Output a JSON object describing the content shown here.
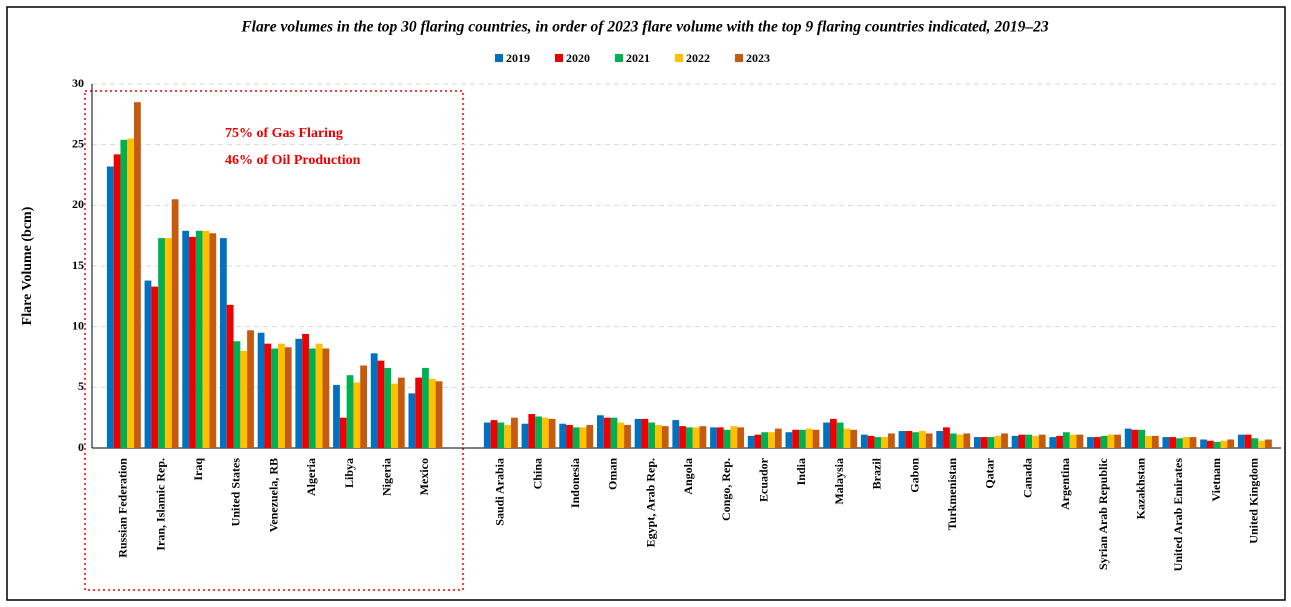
{
  "chart_data": {
    "type": "bar",
    "title": "Flare volumes in the top 30 flaring countries, in order of 2023 flare volume with the top 9 flaring countries indicated, 2019–23",
    "y_label": "Flare Volume (bcm)",
    "annotations": [
      "75% of Gas Flaring",
      "46% of Oil Production"
    ],
    "categories": [
      "Russian Federation",
      "Iran, Islamic Rep.",
      "Iraq",
      "United States",
      "Venezuela, RB",
      "Algeria",
      "Libya",
      "Nigeria",
      "Mexico",
      null,
      "Saudi Arabia",
      "China",
      "Indonesia",
      "Oman",
      "Egypt, Arab Rep.",
      "Angola",
      "Congo, Rep.",
      "Ecuador",
      "India",
      "Malaysia",
      "Brazil",
      "Gabon",
      "Turkmenistan",
      "Qatar",
      "Canada",
      "Argentina",
      "Syrian Arab Republic",
      "Kazakhstan",
      "United Arab Emirates",
      "Vietnam",
      "United Kingdom"
    ],
    "series": [
      {
        "name": "2019",
        "color": "#0070c0",
        "values": [
          23.2,
          13.8,
          17.9,
          17.3,
          9.5,
          9.0,
          5.2,
          7.8,
          4.5,
          null,
          2.1,
          2.0,
          2.0,
          2.7,
          2.4,
          2.3,
          1.7,
          1.0,
          1.3,
          2.1,
          1.1,
          1.4,
          1.4,
          0.9,
          1.0,
          0.9,
          0.9,
          1.6,
          0.9,
          0.7,
          1.1
        ]
      },
      {
        "name": "2020",
        "color": "#ee0000",
        "values": [
          24.2,
          13.3,
          17.4,
          11.8,
          8.6,
          9.4,
          2.5,
          7.2,
          5.8,
          null,
          2.3,
          2.8,
          1.9,
          2.5,
          2.4,
          1.8,
          1.7,
          1.1,
          1.5,
          2.4,
          1.0,
          1.4,
          1.7,
          0.9,
          1.1,
          1.0,
          0.9,
          1.5,
          0.9,
          0.6,
          1.1
        ]
      },
      {
        "name": "2021",
        "color": "#00b050",
        "values": [
          25.4,
          17.3,
          17.9,
          8.8,
          8.2,
          8.2,
          6.0,
          6.6,
          6.6,
          null,
          2.1,
          2.6,
          1.7,
          2.5,
          2.1,
          1.7,
          1.5,
          1.3,
          1.5,
          2.1,
          0.9,
          1.3,
          1.2,
          0.9,
          1.1,
          1.3,
          1.0,
          1.5,
          0.8,
          0.5,
          0.8
        ]
      },
      {
        "name": "2022",
        "color": "#ffc000",
        "values": [
          25.5,
          17.3,
          17.9,
          8.0,
          8.6,
          8.6,
          5.4,
          5.3,
          5.7,
          null,
          1.9,
          2.5,
          1.7,
          2.1,
          1.9,
          1.7,
          1.8,
          1.3,
          1.6,
          1.6,
          0.9,
          1.4,
          1.1,
          1.0,
          1.0,
          1.1,
          1.1,
          1.0,
          0.9,
          0.6,
          0.6
        ]
      },
      {
        "name": "2023",
        "color": "#c55a11",
        "values": [
          28.5,
          20.5,
          17.7,
          9.7,
          8.3,
          8.2,
          6.8,
          5.8,
          5.5,
          null,
          2.5,
          2.4,
          1.9,
          1.9,
          1.8,
          1.8,
          1.7,
          1.6,
          1.5,
          1.5,
          1.2,
          1.2,
          1.2,
          1.2,
          1.1,
          1.1,
          1.1,
          1.0,
          0.9,
          0.7,
          0.7
        ]
      }
    ],
    "ylim": [
      0,
      30
    ],
    "yticks": [
      0,
      5,
      10,
      15,
      20,
      25,
      30
    ],
    "grid": true,
    "legend": "top"
  }
}
